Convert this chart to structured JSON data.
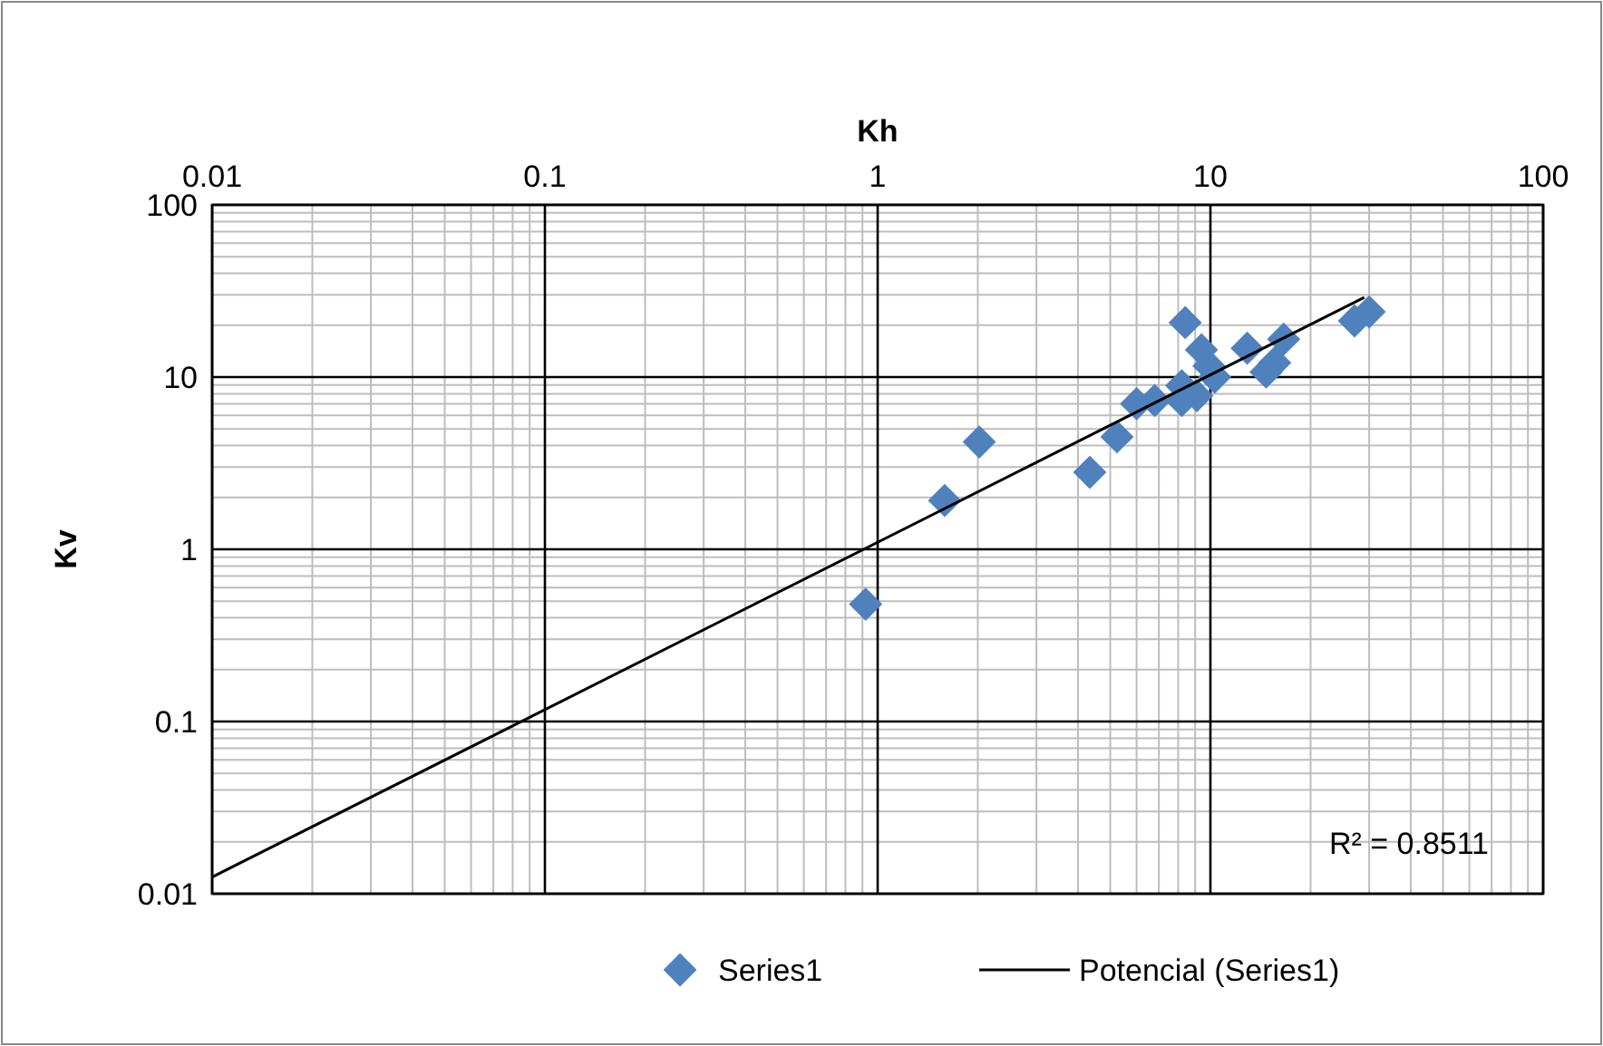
{
  "chart_data": {
    "type": "scatter",
    "xlabel": "Kh",
    "ylabel": "Kv",
    "log": "xy",
    "grid": true,
    "legend": "bottom",
    "marker": "diamond",
    "xlim": [
      0.01,
      100
    ],
    "xticks": [
      0.01,
      0.1,
      1,
      10,
      100
    ],
    "ylim": [
      0.01,
      100
    ],
    "yticks": [
      0.01,
      0.1,
      1,
      10,
      100
    ],
    "annotations": [
      "R² = 0.8511"
    ],
    "series": [
      {
        "name": "Series1",
        "color": "#4f81bd",
        "x": [
          0.92,
          1.59,
          2.02,
          4.34,
          5.24,
          6.0,
          6.8,
          8.4,
          8.2,
          8.2,
          9.1,
          9.4,
          9.9,
          10.3,
          12.9,
          14.7,
          15.6,
          16.6,
          27.1,
          30
        ],
        "values": [
          0.48,
          1.92,
          4.2,
          2.8,
          4.5,
          7.0,
          7.3,
          20.7,
          8.9,
          7.3,
          7.8,
          14.4,
          11.6,
          10.0,
          14.7,
          10.7,
          12.1,
          16.6,
          21.2,
          23.9
        ]
      },
      {
        "name": "Potencial (Series1)",
        "type": "line",
        "color": "#000000",
        "marker": "none",
        "x": [
          0.01,
          29
        ],
        "values": [
          0.0125,
          29
        ]
      }
    ]
  }
}
